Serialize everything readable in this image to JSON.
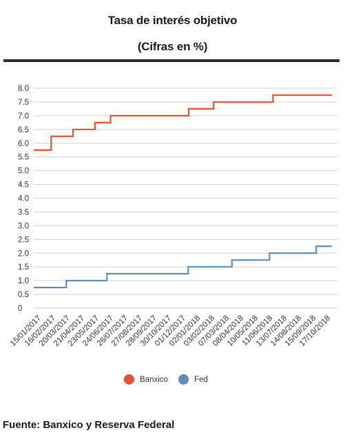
{
  "header": {
    "title": "Tasa de interés objetivo",
    "subtitle": "(Cifras en %)"
  },
  "source": "Fuente: Banxico y Reserva Federal",
  "chart_data": {
    "type": "line",
    "step": true,
    "title": "Tasa de interés objetivo",
    "subtitle": "(Cifras en %)",
    "ylim": [
      0,
      8
    ],
    "yticks": [
      "0",
      "0.5",
      "1.0",
      "1.5",
      "2.0",
      "2.5",
      "3.0",
      "3.5",
      "4.0",
      "4.5",
      "5.0",
      "5.5",
      "6.0",
      "6.5",
      "7.0",
      "7.5",
      "8.0"
    ],
    "grid": true,
    "legend_position": "bottom",
    "categories": [
      "15/01/2017",
      "16/02/2017",
      "20/03/2017",
      "21/04/2017",
      "23/05/2017",
      "24/06/2017",
      "26/07/2017",
      "27/08/2017",
      "28/09/2017",
      "30/10/2017",
      "01/12/2017",
      "02/01/2018",
      "03/02/2018",
      "07/03/2018",
      "08/04/2018",
      "10/05/2018",
      "11/06/2018",
      "13/07/2018",
      "14/08/2018",
      "15/09/2018",
      "17/10/2018"
    ],
    "x_start": "2017-01-01",
    "x_end": "2018-10-31",
    "series": [
      {
        "name": "Banxico",
        "color": "#e8512d",
        "steps": [
          {
            "date": "2017-01-01",
            "value": 5.75
          },
          {
            "date": "2017-02-09",
            "value": 6.25
          },
          {
            "date": "2017-03-30",
            "value": 6.5
          },
          {
            "date": "2017-05-18",
            "value": 6.75
          },
          {
            "date": "2017-06-22",
            "value": 7.0
          },
          {
            "date": "2017-12-14",
            "value": 7.25
          },
          {
            "date": "2018-02-08",
            "value": 7.5
          },
          {
            "date": "2018-06-21",
            "value": 7.75
          },
          {
            "date": "2018-10-31",
            "value": 7.75
          }
        ]
      },
      {
        "name": "Fed",
        "color": "#5b8db8",
        "steps": [
          {
            "date": "2017-01-01",
            "value": 0.75
          },
          {
            "date": "2017-03-15",
            "value": 1.0
          },
          {
            "date": "2017-06-14",
            "value": 1.25
          },
          {
            "date": "2017-12-13",
            "value": 1.5
          },
          {
            "date": "2018-03-21",
            "value": 1.75
          },
          {
            "date": "2018-06-13",
            "value": 2.0
          },
          {
            "date": "2018-09-26",
            "value": 2.25
          },
          {
            "date": "2018-10-31",
            "value": 2.25
          }
        ]
      }
    ]
  }
}
